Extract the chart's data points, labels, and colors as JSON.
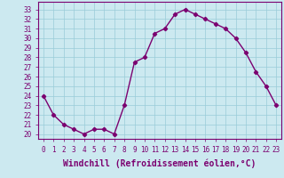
{
  "x": [
    0,
    1,
    2,
    3,
    4,
    5,
    6,
    7,
    8,
    9,
    10,
    11,
    12,
    13,
    14,
    15,
    16,
    17,
    18,
    19,
    20,
    21,
    22,
    23
  ],
  "y": [
    24,
    22,
    21,
    20.5,
    20,
    20.5,
    20.5,
    20,
    23,
    27.5,
    28,
    30.5,
    31,
    32.5,
    33,
    32.5,
    32,
    31.5,
    31,
    30,
    28.5,
    26.5,
    25,
    23
  ],
  "line_color": "#7B0070",
  "marker": "D",
  "marker_size": 2.2,
  "bg_color": "#cce9f0",
  "grid_color": "#99ccd9",
  "xlabel": "Windchill (Refroidissement éolien,°C)",
  "xlabel_fontsize": 7,
  "ylabel_ticks": [
    20,
    21,
    22,
    23,
    24,
    25,
    26,
    27,
    28,
    29,
    30,
    31,
    32,
    33
  ],
  "ylim": [
    19.5,
    33.8
  ],
  "xlim": [
    -0.5,
    23.5
  ],
  "xtick_labels": [
    "0",
    "1",
    "2",
    "3",
    "4",
    "5",
    "6",
    "7",
    "8",
    "9",
    "10",
    "11",
    "12",
    "13",
    "14",
    "15",
    "16",
    "17",
    "18",
    "19",
    "20",
    "21",
    "22",
    "23"
  ],
  "tick_fontsize": 5.5,
  "line_width": 1.0
}
